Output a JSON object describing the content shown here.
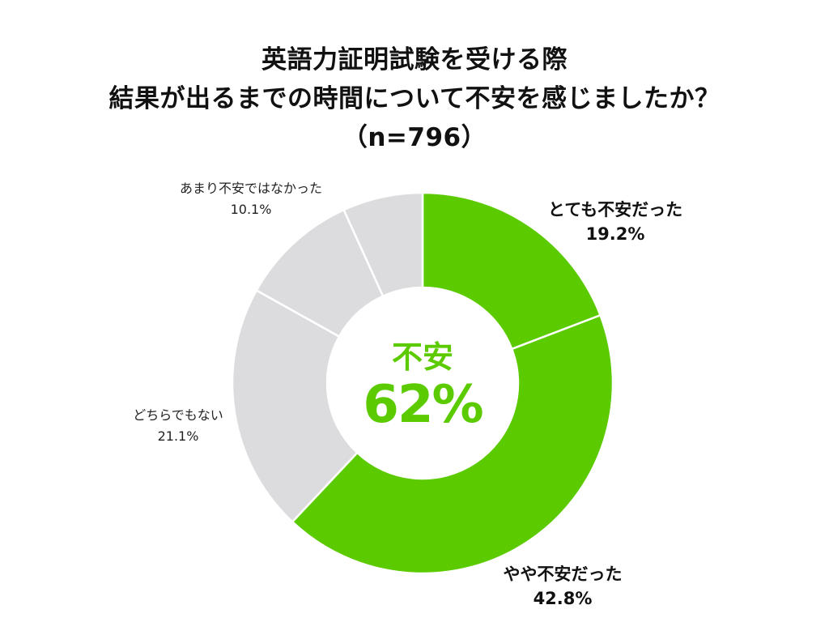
{
  "title": {
    "line1": "英語力証明試験を受ける際",
    "line2": "結果が出るまでの時間について不安を感じましたか？",
    "line3": "（n=796）"
  },
  "center": {
    "label": "不安",
    "value": "62%"
  },
  "colors": {
    "accent": "#5bcb00",
    "neutral": "#dcdcdf",
    "separator": "#ffffff",
    "text": "#111111"
  },
  "chart_data": {
    "type": "donut",
    "title": "英語力証明試験を受ける際 結果が出るまでの時間について不安を感じましたか？",
    "n": 796,
    "slices": [
      {
        "label": "とても不安だった",
        "value": 19.2,
        "value_label": "19.2%",
        "color": "#5bcb00",
        "emphasis": true
      },
      {
        "label": "やや不安だった",
        "value": 42.8,
        "value_label": "42.8%",
        "color": "#5bcb00",
        "emphasis": true
      },
      {
        "label": "どちらでもない",
        "value": 21.1,
        "value_label": "21.1%",
        "color": "#dcdcdf",
        "emphasis": false
      },
      {
        "label": "あまり不安ではなかった",
        "value": 10.1,
        "value_label": "10.1%",
        "color": "#dcdcdf",
        "emphasis": false
      },
      {
        "label": "",
        "value": 6.8,
        "value_label": "",
        "color": "#dcdcdf",
        "emphasis": false
      }
    ],
    "start": "12 o'clock",
    "direction": "clockwise",
    "center_text": [
      "不安",
      "62%"
    ]
  }
}
